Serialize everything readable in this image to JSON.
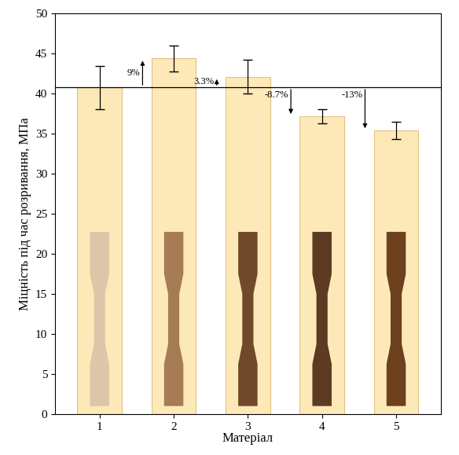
{
  "chart_data": {
    "type": "bar",
    "title": null,
    "x_label": "Матеріал",
    "y_label": "Міцність під час розривання, МПа",
    "categories": [
      "1",
      "2",
      "3",
      "4",
      "5"
    ],
    "values": [
      40.8,
      44.4,
      42.1,
      37.2,
      35.4
    ],
    "errors": [
      2.7,
      1.6,
      2.1,
      0.9,
      1.1
    ],
    "color": "#fde9b8",
    "ylim": [
      0,
      50
    ],
    "yticks": [
      0,
      5,
      10,
      15,
      20,
      25,
      30,
      35,
      40,
      45,
      50
    ],
    "grid": false,
    "annotations": [
      {
        "category": "2",
        "text": "9%"
      },
      {
        "category": "3",
        "text": "3.3%"
      },
      {
        "category": "4",
        "text": "-8.7%"
      },
      {
        "category": "5",
        "text": "-13%"
      }
    ]
  }
}
